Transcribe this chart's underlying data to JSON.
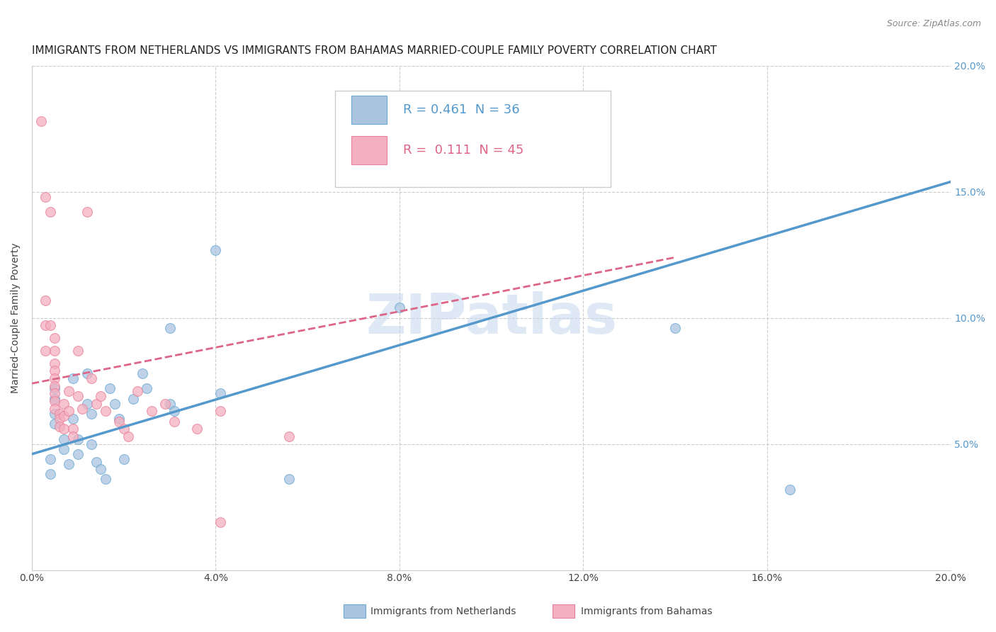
{
  "title": "IMMIGRANTS FROM NETHERLANDS VS IMMIGRANTS FROM BAHAMAS MARRIED-COUPLE FAMILY POVERTY CORRELATION CHART",
  "source": "Source: ZipAtlas.com",
  "ylabel": "Married-Couple Family Poverty",
  "watermark": "ZIPatlas",
  "xlim": [
    0.0,
    0.2
  ],
  "ylim": [
    0.0,
    0.2
  ],
  "yticks": [
    0.0,
    0.05,
    0.1,
    0.15,
    0.2
  ],
  "ytick_labels": [
    "",
    "5.0%",
    "10.0%",
    "15.0%",
    "20.0%"
  ],
  "xticks": [
    0.0,
    0.04,
    0.08,
    0.12,
    0.16,
    0.2
  ],
  "xtick_labels": [
    "0.0%",
    "4.0%",
    "8.0%",
    "12.0%",
    "16.0%",
    "20.0%"
  ],
  "background_color": "#ffffff",
  "grid_color": "#cccccc",
  "blue_scatter_color": "#aac4e0",
  "pink_scatter_color": "#f4afc0",
  "blue_edge_color": "#6aaad4",
  "pink_edge_color": "#e8809a",
  "blue_line_color": "#5599cc",
  "pink_line_color": "#dd6688",
  "blue_points": [
    [
      0.004,
      0.044
    ],
    [
      0.004,
      0.038
    ],
    [
      0.005,
      0.058
    ],
    [
      0.005,
      0.062
    ],
    [
      0.005,
      0.068
    ],
    [
      0.005,
      0.072
    ],
    [
      0.007,
      0.052
    ],
    [
      0.007,
      0.048
    ],
    [
      0.008,
      0.042
    ],
    [
      0.009,
      0.076
    ],
    [
      0.009,
      0.06
    ],
    [
      0.01,
      0.052
    ],
    [
      0.01,
      0.046
    ],
    [
      0.012,
      0.078
    ],
    [
      0.012,
      0.066
    ],
    [
      0.013,
      0.062
    ],
    [
      0.013,
      0.05
    ],
    [
      0.014,
      0.043
    ],
    [
      0.015,
      0.04
    ],
    [
      0.016,
      0.036
    ],
    [
      0.017,
      0.072
    ],
    [
      0.018,
      0.066
    ],
    [
      0.019,
      0.06
    ],
    [
      0.02,
      0.044
    ],
    [
      0.022,
      0.068
    ],
    [
      0.024,
      0.078
    ],
    [
      0.025,
      0.072
    ],
    [
      0.03,
      0.096
    ],
    [
      0.03,
      0.066
    ],
    [
      0.031,
      0.063
    ],
    [
      0.04,
      0.127
    ],
    [
      0.041,
      0.07
    ],
    [
      0.056,
      0.036
    ],
    [
      0.08,
      0.104
    ],
    [
      0.14,
      0.096
    ],
    [
      0.165,
      0.032
    ]
  ],
  "pink_points": [
    [
      0.002,
      0.178
    ],
    [
      0.003,
      0.148
    ],
    [
      0.003,
      0.107
    ],
    [
      0.003,
      0.097
    ],
    [
      0.003,
      0.087
    ],
    [
      0.004,
      0.142
    ],
    [
      0.004,
      0.097
    ],
    [
      0.005,
      0.092
    ],
    [
      0.005,
      0.087
    ],
    [
      0.005,
      0.082
    ],
    [
      0.005,
      0.079
    ],
    [
      0.005,
      0.076
    ],
    [
      0.005,
      0.073
    ],
    [
      0.005,
      0.07
    ],
    [
      0.005,
      0.067
    ],
    [
      0.005,
      0.064
    ],
    [
      0.006,
      0.062
    ],
    [
      0.006,
      0.06
    ],
    [
      0.006,
      0.057
    ],
    [
      0.007,
      0.066
    ],
    [
      0.007,
      0.061
    ],
    [
      0.007,
      0.056
    ],
    [
      0.008,
      0.071
    ],
    [
      0.008,
      0.063
    ],
    [
      0.009,
      0.056
    ],
    [
      0.009,
      0.053
    ],
    [
      0.01,
      0.087
    ],
    [
      0.01,
      0.069
    ],
    [
      0.011,
      0.064
    ],
    [
      0.012,
      0.142
    ],
    [
      0.013,
      0.076
    ],
    [
      0.014,
      0.066
    ],
    [
      0.015,
      0.069
    ],
    [
      0.016,
      0.063
    ],
    [
      0.019,
      0.059
    ],
    [
      0.02,
      0.056
    ],
    [
      0.021,
      0.053
    ],
    [
      0.023,
      0.071
    ],
    [
      0.026,
      0.063
    ],
    [
      0.029,
      0.066
    ],
    [
      0.031,
      0.059
    ],
    [
      0.036,
      0.056
    ],
    [
      0.041,
      0.063
    ],
    [
      0.041,
      0.019
    ],
    [
      0.056,
      0.053
    ]
  ],
  "blue_line_x": [
    0.0,
    0.2
  ],
  "blue_line_y": [
    0.046,
    0.154
  ],
  "pink_line_x": [
    0.0,
    0.14
  ],
  "pink_line_y": [
    0.074,
    0.124
  ],
  "title_fontsize": 11,
  "source_fontsize": 9,
  "axis_label_fontsize": 10,
  "tick_fontsize": 10
}
